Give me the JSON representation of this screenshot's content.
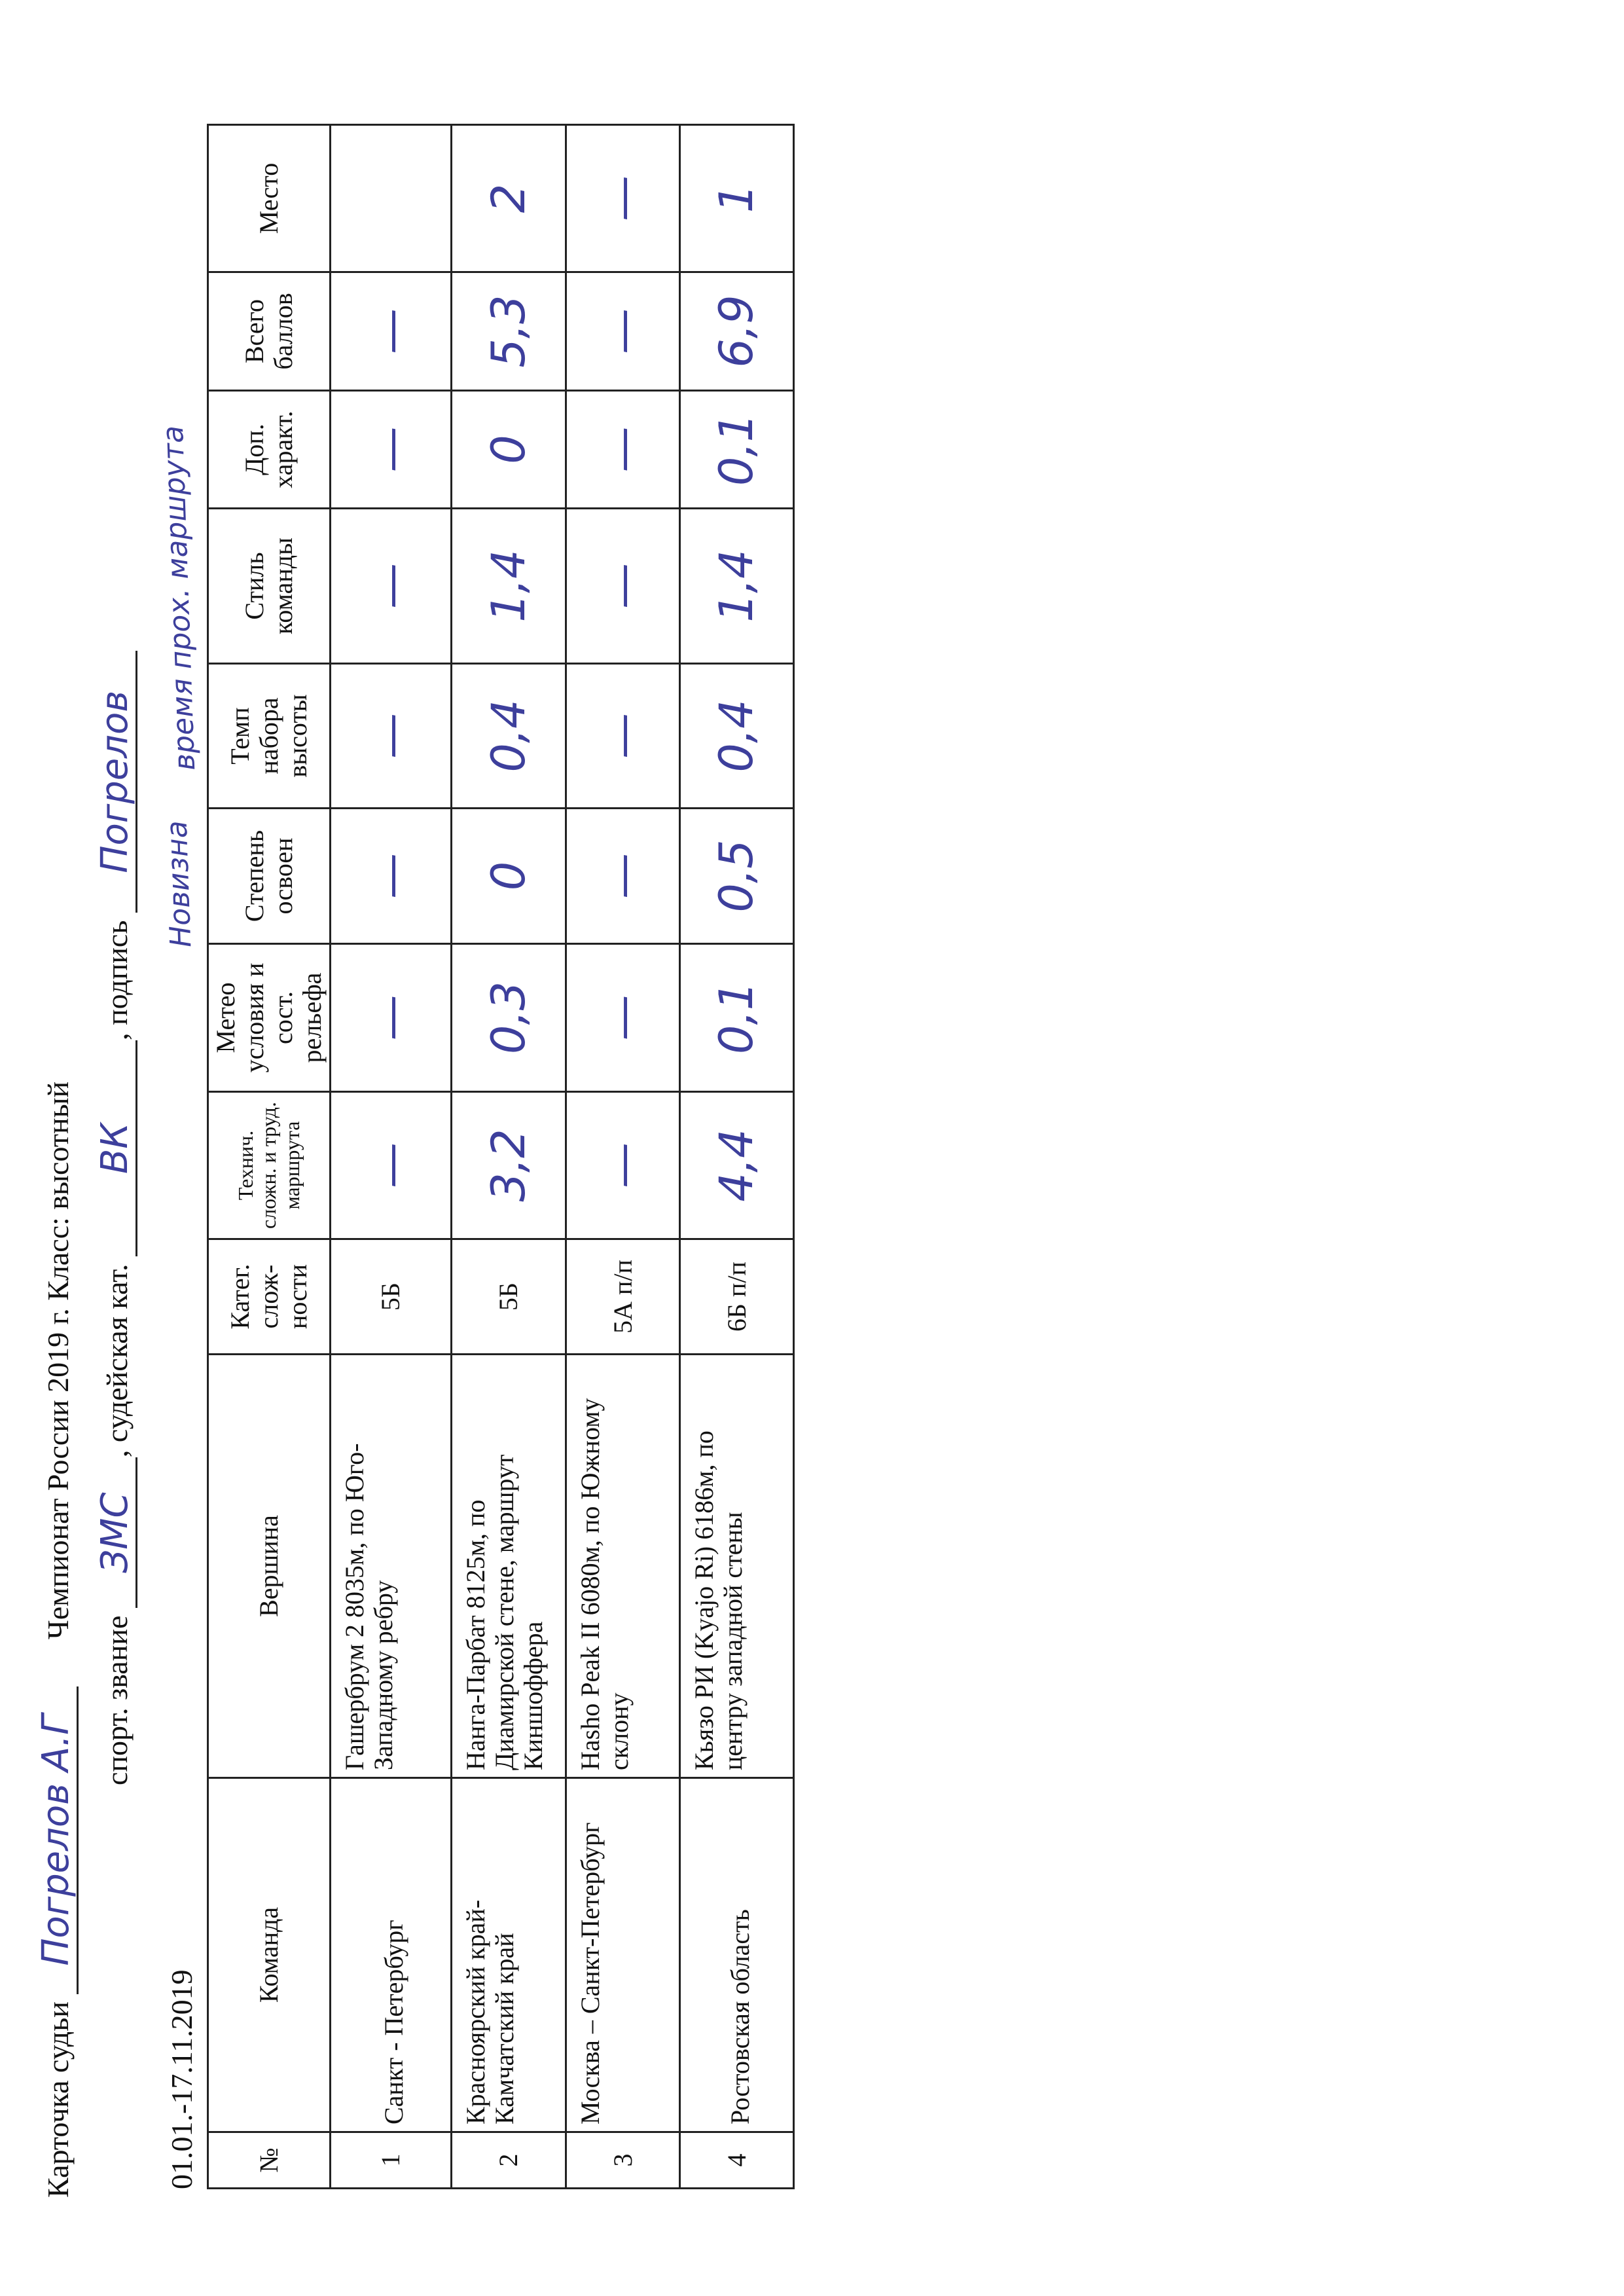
{
  "header": {
    "judge_label": "Карточка судьи",
    "judge_name": "Погрелов А.Г",
    "championship": "Чемпионат  России 2019 г.  Класс: высотный",
    "rank_label": "спорт. звание",
    "rank_value": "ЗМС",
    "category_label": ", судейская кат.",
    "category_value": "ВК",
    "signature_label": ", подпись",
    "signature": "Погрелов",
    "dates": "01.01.-17.11.2019"
  },
  "notes": {
    "novelty": "Новизна",
    "route_time": "время прох. маршрута"
  },
  "columns": [
    "№",
    "Команда",
    "Вершина",
    "Катег. слож-ности",
    "Технич. сложн. и труд. маршрута",
    "Метео условия и сост. рельефа",
    "Степень освоен",
    "Темп набора высоты",
    "Стиль команды",
    "Доп. характ.",
    "Всего баллов",
    "Место"
  ],
  "rows": [
    {
      "n": "1",
      "team": "Санкт - Петербург",
      "peak": "Гашербрум 2  8035м, по Юго-Западному ребру",
      "cat": "5Б",
      "tech": "—",
      "meteo": "—",
      "mastery": "—",
      "pace": "—",
      "style": "—",
      "extra": "—",
      "total": "—",
      "place": ""
    },
    {
      "n": "2",
      "team": "Красноярский край-Камчатский край",
      "peak": "Нанга-Парбат 8125м, по Диамирской стене, маршрут Киншоффера",
      "cat": "5Б",
      "tech": "3,2",
      "meteo": "0,3",
      "mastery": "0",
      "pace": "0,4",
      "style": "1,4",
      "extra": "0",
      "total": "5,3",
      "place": "2"
    },
    {
      "n": "3",
      "team": "Москва – Санкт-Петербург",
      "peak": "Hasho Peak II 6080м, по Южному склону",
      "cat": "5А п/п",
      "tech": "—",
      "meteo": "—",
      "mastery": "—",
      "pace": "—",
      "style": "—",
      "extra": "—",
      "total": "—",
      "place": "—"
    },
    {
      "n": "4",
      "team": "Ростовская область",
      "peak": "Кьязо РИ (Kyajo Ri) 6186м, по центру западной стены",
      "cat": "6Б п/п",
      "tech": "4,4",
      "meteo": "0,1",
      "mastery": "0,5",
      "pace": "0,4",
      "style": "1,4",
      "extra": "0,1",
      "total": "6,9",
      "place": "1"
    }
  ],
  "colors": {
    "ink": "#3d3f9c",
    "print": "#111111"
  }
}
